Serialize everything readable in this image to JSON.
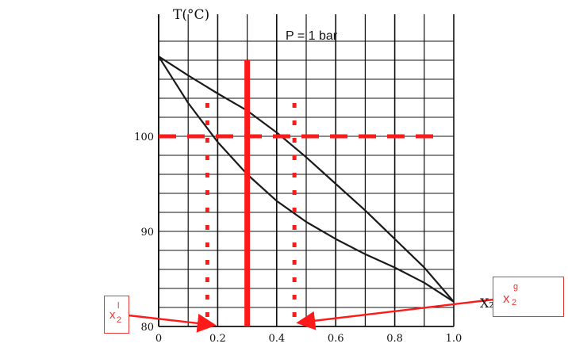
{
  "chart_data": {
    "type": "line",
    "title": "P = 1 bar",
    "ylabel": "T(°C)",
    "xlabel": "X₂",
    "xlim": [
      0,
      1
    ],
    "ylim": [
      80,
      110
    ],
    "x_ticks": [
      {
        "value": 0,
        "label": "0"
      },
      {
        "value": 0.2,
        "label": "0.2"
      },
      {
        "value": 0.4,
        "label": "0.4"
      },
      {
        "value": 0.6,
        "label": "0.6"
      },
      {
        "value": 0.8,
        "label": "0.8"
      },
      {
        "value": 1.0,
        "label": "1.0"
      }
    ],
    "y_ticks": [
      {
        "value": 80,
        "label": "80"
      },
      {
        "value": 90,
        "label": "90"
      },
      {
        "value": 100,
        "label": "100"
      }
    ],
    "grid": true,
    "series": [
      {
        "role": "upper curve",
        "color": "#1a1a1a",
        "x": [
          0,
          0.1,
          0.2,
          0.3,
          0.4,
          0.5,
          0.6,
          0.7,
          0.8,
          0.9,
          1.0
        ],
        "y": [
          108.4,
          106.4,
          104.5,
          102.7,
          100.4,
          97.8,
          95.0,
          92.2,
          89.2,
          86.2,
          82.6
        ]
      },
      {
        "role": "lower curve",
        "color": "#1a1a1a",
        "x": [
          0,
          0.1,
          0.2,
          0.3,
          0.4,
          0.5,
          0.6,
          0.7,
          0.8,
          0.9,
          1.0
        ],
        "y": [
          108.4,
          103.5,
          99.4,
          96.0,
          93.2,
          91.0,
          89.2,
          87.6,
          86.2,
          84.6,
          82.6
        ]
      }
    ],
    "overlays": {
      "color": "#ff1a1a",
      "isotherm_dashed_T": 100,
      "isotherm_x_range": [
        0.0,
        0.95
      ],
      "vertical_solid_x": 0.3,
      "vertical_solid_y_range": [
        80,
        108
      ],
      "dotted_left_x": 0.165,
      "dotted_right_x": 0.46,
      "dotted_y_range": [
        81,
        104
      ]
    }
  },
  "annotations": {
    "liquid_label": {
      "base": "x",
      "sub": "2",
      "sup": "l"
    },
    "vapor_label": {
      "base": "x",
      "sub": "2",
      "sup": "g"
    }
  }
}
